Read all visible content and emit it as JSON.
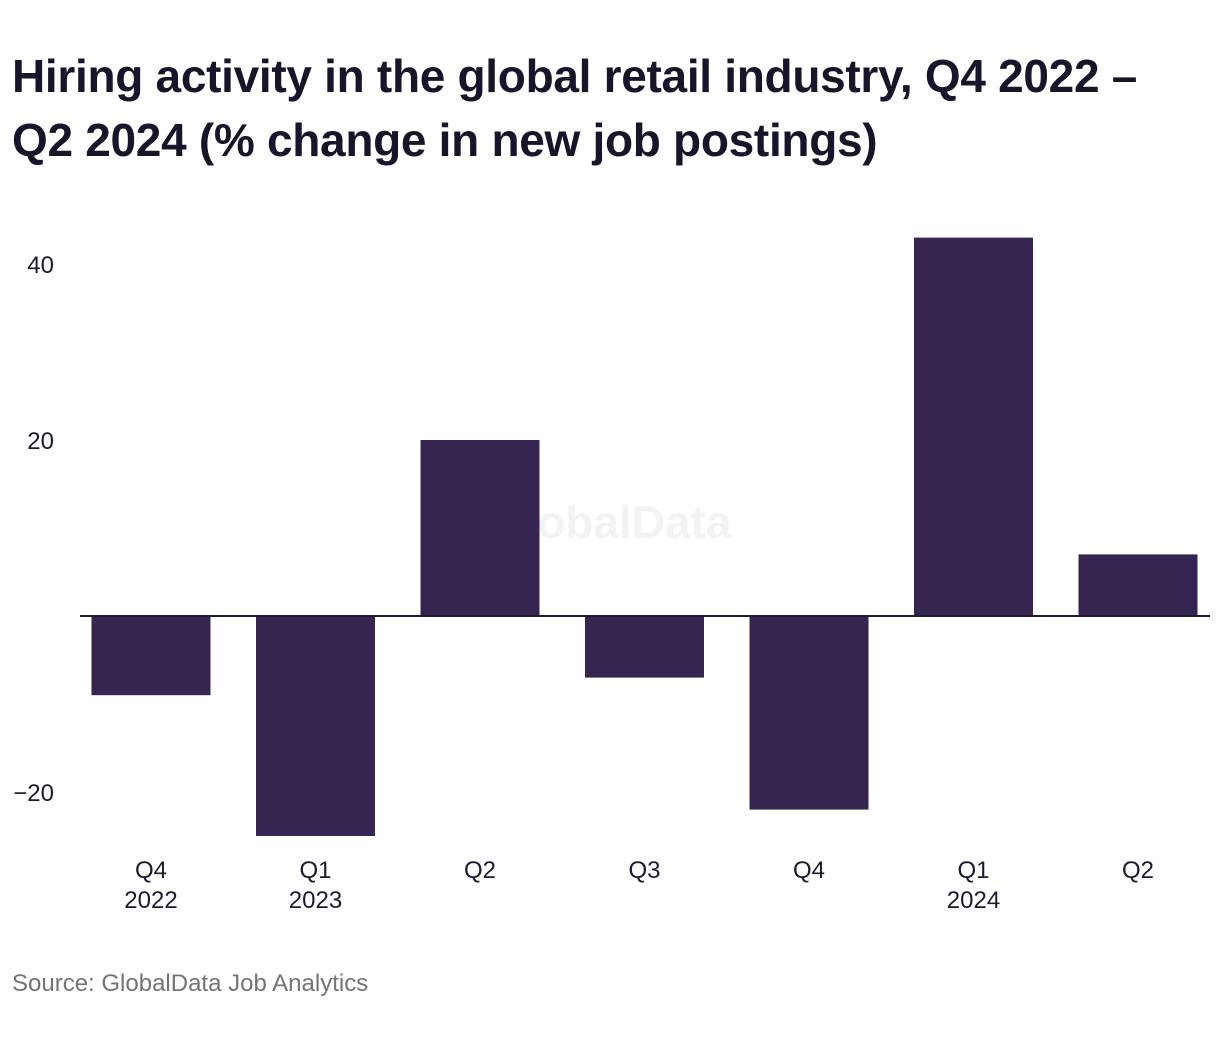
{
  "title": "Hiring activity in the global retail industry, Q4 2022 – Q2 2024 (% change in new job postings)",
  "source": "Source: GlobalData Job Analytics",
  "watermark": "GlobalData",
  "colors": {
    "bar": "#352550",
    "axis": "#1b1b2f",
    "text": "#1b1b2f",
    "source": "#747478"
  },
  "chart_data": {
    "type": "bar",
    "categories": [
      "Q4 2022",
      "Q1 2023",
      "Q2 2023",
      "Q3 2023",
      "Q4 2023",
      "Q1 2024",
      "Q2 2024"
    ],
    "category_labels": [
      {
        "top": "Q4",
        "bottom": "2022"
      },
      {
        "top": "Q1",
        "bottom": "2023"
      },
      {
        "top": "Q2",
        "bottom": ""
      },
      {
        "top": "Q3",
        "bottom": ""
      },
      {
        "top": "Q4",
        "bottom": ""
      },
      {
        "top": "Q1",
        "bottom": "2024"
      },
      {
        "top": "Q2",
        "bottom": ""
      }
    ],
    "values": [
      -9,
      -25,
      20,
      -7,
      -22,
      43,
      7
    ],
    "yticks": [
      40,
      20,
      -20
    ],
    "ytick_labels": [
      "40",
      "20",
      "−20"
    ],
    "ylim": [
      -25,
      43
    ],
    "grid": false,
    "legend": "none",
    "xlabel": "",
    "ylabel": ""
  }
}
